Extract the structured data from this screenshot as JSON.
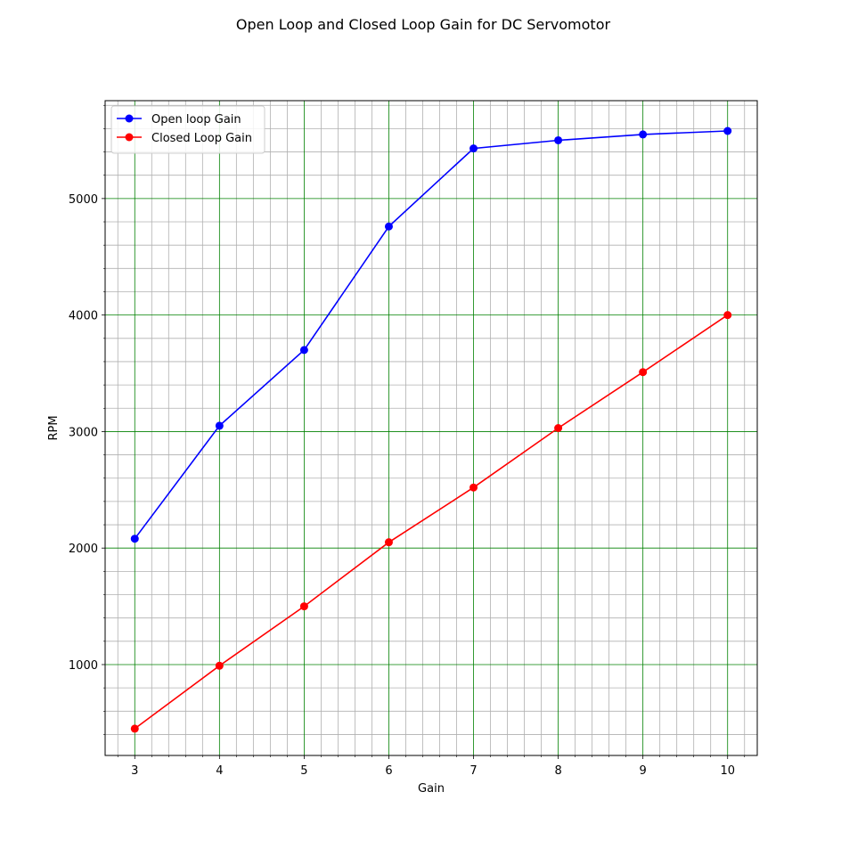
{
  "chart_data": {
    "type": "line",
    "title": "Open Loop and Closed Loop Gain for DC Servomotor",
    "xlabel": "Gain",
    "ylabel": "RPM",
    "x": [
      3,
      4,
      5,
      6,
      7,
      8,
      9,
      10
    ],
    "xlim": [
      2.65,
      10.35
    ],
    "ylim": [
      220,
      5840
    ],
    "xticks": [
      3,
      4,
      5,
      6,
      7,
      8,
      9,
      10
    ],
    "yticks": [
      1000,
      2000,
      3000,
      4000,
      5000
    ],
    "x_minor_step": 0.2,
    "y_minor_step": 200,
    "grid": {
      "major": true,
      "major_color": "#008000",
      "minor": true,
      "minor_color": "#b0b0b0"
    },
    "legend_position": "top-left",
    "series": [
      {
        "name": "Open loop Gain",
        "color": "#0000ff",
        "marker": "circle",
        "values": [
          2080,
          3050,
          3700,
          4760,
          5430,
          5500,
          5550,
          5580
        ]
      },
      {
        "name": "Closed Loop Gain",
        "color": "#ff0000",
        "marker": "circle",
        "values": [
          450,
          990,
          1500,
          2050,
          2520,
          3030,
          3510,
          4000
        ]
      }
    ]
  }
}
